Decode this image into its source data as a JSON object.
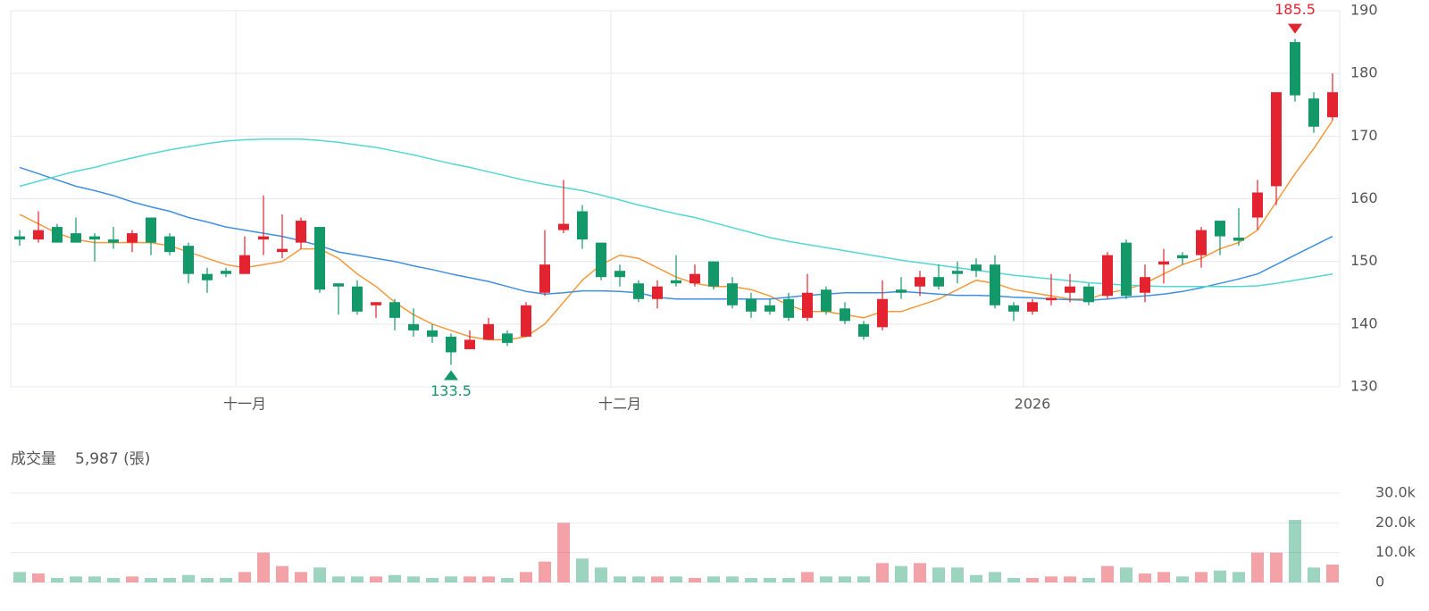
{
  "chart_data": [
    {
      "type": "candlestick",
      "categories": [
        null,
        null,
        null,
        null,
        null,
        null,
        null,
        null,
        null,
        null,
        null,
        null,
        "十一月",
        null,
        null,
        null,
        null,
        null,
        null,
        null,
        null,
        null,
        null,
        null,
        null,
        null,
        null,
        null,
        null,
        null,
        null,
        null,
        "十二月",
        null,
        null,
        null,
        null,
        null,
        null,
        null,
        null,
        null,
        null,
        null,
        null,
        null,
        null,
        null,
        null,
        null,
        null,
        null,
        null,
        null,
        "2026",
        null,
        null,
        null,
        null,
        null,
        null,
        null,
        null,
        null,
        null,
        null,
        null,
        null,
        null,
        null,
        null
      ],
      "open": [
        154,
        153.5,
        155.5,
        154.5,
        154,
        153.5,
        153,
        157,
        154,
        152.5,
        148,
        148.5,
        148,
        153.5,
        151.5,
        153,
        155.5,
        146.5,
        146,
        143,
        143.5,
        140,
        139,
        138,
        136,
        137.5,
        138.5,
        138,
        145,
        155,
        158,
        153,
        148.5,
        146.5,
        144,
        147,
        146.5,
        150,
        146.5,
        144,
        143,
        144,
        141,
        145.5,
        142.5,
        140,
        139.5,
        145.5,
        146,
        147.5,
        148.5,
        149.5,
        149.5,
        143,
        142,
        143.8,
        145,
        146,
        144.5,
        153,
        145,
        149.5,
        151,
        151,
        156.5,
        153.8,
        157,
        162,
        185,
        176,
        173
      ],
      "high": [
        155,
        158,
        156,
        157,
        154.5,
        155.5,
        155,
        157,
        154.5,
        153,
        149,
        149,
        154,
        160.5,
        157.5,
        157,
        155.5,
        146.5,
        147,
        143.5,
        144,
        142.5,
        140,
        138.5,
        139,
        141,
        139,
        143.5,
        155,
        163,
        159,
        153,
        149.5,
        147,
        147,
        151,
        149.5,
        150,
        147.5,
        145,
        144,
        145,
        148,
        146,
        143.5,
        140.5,
        147,
        147.5,
        148.5,
        149.5,
        150,
        150.5,
        151,
        143.5,
        144,
        148,
        148,
        146.5,
        151.5,
        153.5,
        149.5,
        152,
        151.5,
        155.5,
        156.5,
        158.5,
        163,
        177,
        185.5,
        177,
        180
      ],
      "low": [
        152.5,
        153,
        153,
        153,
        150,
        152,
        151.5,
        151,
        151,
        146.5,
        145,
        147.5,
        148,
        151,
        150.5,
        152,
        145,
        141.5,
        141.5,
        141,
        139,
        138,
        137,
        133.5,
        136,
        137.5,
        136.5,
        138,
        144.5,
        154.5,
        152,
        147,
        146,
        143.5,
        142.5,
        146,
        146,
        145.5,
        142.5,
        141,
        141.5,
        140.5,
        140.5,
        141.5,
        140,
        137.5,
        139,
        144,
        144.5,
        145.5,
        146.5,
        147.5,
        142.5,
        140.5,
        141.5,
        143,
        143.5,
        143,
        144,
        144,
        143.5,
        146.5,
        149.5,
        149,
        151,
        152.5,
        155,
        159,
        175.5,
        170.5,
        172.5
      ],
      "close": [
        153.5,
        155,
        153,
        153,
        153.5,
        153,
        154.5,
        153,
        151.5,
        148,
        147,
        148,
        151,
        154,
        152,
        156.5,
        145.5,
        146,
        142,
        143.5,
        141,
        139,
        138,
        135.5,
        137.5,
        140,
        137,
        143,
        149.5,
        156,
        153.5,
        147.5,
        147.5,
        144,
        146,
        146.5,
        148,
        146,
        143,
        142,
        142,
        141,
        145,
        142,
        140.5,
        138,
        144,
        145,
        147.5,
        146,
        148,
        148.5,
        143,
        142,
        143.5,
        144.2,
        146,
        143.5,
        151,
        144.5,
        147.5,
        150,
        150.5,
        155,
        154,
        153.3,
        161,
        177,
        176.5,
        171.5,
        177
      ],
      "up_color": "#e3232f",
      "down_color": "#13986a",
      "series": [
        {
          "color": "#f5993a",
          "values": [
            157.5,
            156,
            154.5,
            153.5,
            153,
            153,
            153,
            153,
            152.5,
            151.5,
            150.5,
            149.5,
            149,
            149.5,
            150,
            152,
            152,
            150.5,
            148,
            146,
            143.5,
            141.5,
            140,
            139,
            138,
            137.5,
            137.5,
            138,
            140,
            143.5,
            147,
            149.5,
            151,
            150.5,
            149,
            147.5,
            146.5,
            146,
            146,
            145.5,
            144.5,
            143,
            142,
            142,
            141.5,
            141,
            142,
            142,
            143,
            144,
            145.5,
            147,
            146.5,
            145.5,
            145,
            144.5,
            144,
            144,
            145,
            145.5,
            146.5,
            148,
            149.5,
            150.5,
            152,
            153,
            155,
            159.5,
            164,
            168,
            172.5
          ]
        },
        {
          "color": "#3f8fe3",
          "values": [
            165,
            164,
            163,
            162,
            161.3,
            160.5,
            159.5,
            158.7,
            158,
            157,
            156.3,
            155.5,
            155,
            154.5,
            154,
            153.3,
            152.5,
            151.5,
            151,
            150.5,
            150,
            149.3,
            148.7,
            148,
            147.4,
            146.8,
            146,
            145.2,
            144.8,
            145,
            145.3,
            145.3,
            145.2,
            145,
            144.3,
            144,
            144,
            144,
            144,
            144,
            144,
            144.3,
            144.6,
            144.8,
            145,
            145,
            145,
            145.2,
            145,
            144.8,
            144.6,
            144.6,
            144.5,
            144.3,
            144.2,
            144,
            143.9,
            143.8,
            144,
            144.3,
            144.5,
            144.8,
            145.2,
            145.8,
            146.5,
            147.2,
            148,
            149.5,
            151,
            152.5,
            154
          ]
        },
        {
          "color": "#52d8d2",
          "values": [
            162,
            162.8,
            163.6,
            164.4,
            165,
            165.8,
            166.5,
            167.2,
            167.8,
            168.3,
            168.8,
            169.2,
            169.4,
            169.5,
            169.5,
            169.5,
            169.3,
            169,
            168.6,
            168.2,
            167.6,
            167,
            166.3,
            165.6,
            165,
            164.3,
            163.6,
            162.9,
            162.3,
            161.8,
            161.3,
            160.6,
            159.8,
            159,
            158.3,
            157.6,
            157,
            156.2,
            155.4,
            154.6,
            153.8,
            153.2,
            152.7,
            152.2,
            151.7,
            151.2,
            150.7,
            150.2,
            149.8,
            149.4,
            149,
            148.6,
            148.2,
            147.8,
            147.5,
            147.2,
            146.9,
            146.6,
            146.4,
            146.2,
            146.1,
            146,
            146,
            146,
            146,
            146,
            146.1,
            146.5,
            147,
            147.5,
            148
          ]
        }
      ],
      "max_marker": 185.5,
      "min_marker": 133.5,
      "ylim": [
        130,
        190
      ],
      "yticks": [
        130,
        140,
        150,
        160,
        170,
        180,
        190
      ],
      "grid": true
    },
    {
      "type": "bar",
      "title": "成交量",
      "subtitle": "5,987 (張)",
      "values": [
        3500,
        3000,
        1500,
        2000,
        2000,
        1500,
        2000,
        1500,
        1500,
        2500,
        1500,
        1500,
        3500,
        10000,
        5500,
        3500,
        5000,
        2000,
        2000,
        2000,
        2500,
        2000,
        1500,
        2000,
        2000,
        2000,
        1500,
        3500,
        7000,
        20000,
        8000,
        5000,
        2000,
        2000,
        2000,
        2000,
        1500,
        2000,
        2000,
        1500,
        1500,
        1500,
        3500,
        2000,
        2000,
        2000,
        6500,
        5500,
        6500,
        5000,
        5000,
        2500,
        3500,
        1500,
        1500,
        2000,
        2000,
        1500,
        5500,
        5000,
        3000,
        3500,
        2000,
        3500,
        4000,
        3500,
        10000,
        10000,
        21000,
        5000,
        5987
      ],
      "ylim": [
        0,
        30000
      ],
      "yticks": [
        0,
        {
          "value": 10000,
          "label": "10.0k"
        },
        {
          "value": 20000,
          "label": "20.0k"
        },
        {
          "value": 30000,
          "label": "30.0k"
        }
      ],
      "grid": true
    }
  ]
}
